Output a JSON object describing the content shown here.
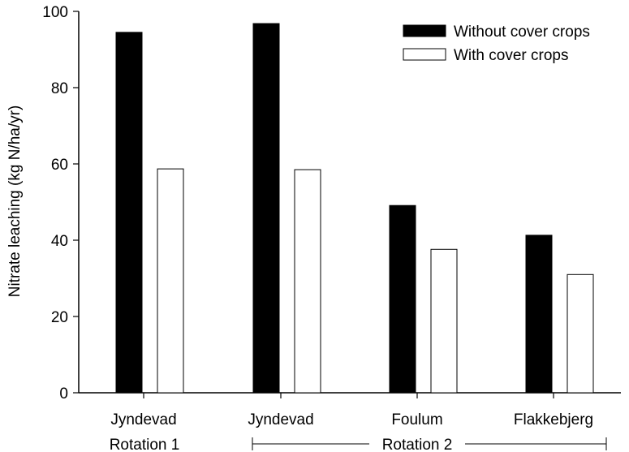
{
  "chart_data": {
    "type": "bar",
    "categories": [
      "Jyndevad",
      "Jyndevad",
      "Foulum",
      "Flakkebjerg"
    ],
    "groups": [
      {
        "label": "Rotation 1",
        "categories": [
          0
        ]
      },
      {
        "label": "Rotation 2",
        "categories": [
          1,
          2,
          3
        ]
      }
    ],
    "series": [
      {
        "name": "Without cover crops",
        "values": [
          94.5,
          96.8,
          49.1,
          41.3
        ],
        "color": "#000000"
      },
      {
        "name": "With cover crops",
        "values": [
          58.7,
          58.5,
          37.6,
          31.0
        ],
        "color": "#ffffff"
      }
    ],
    "title": "",
    "xlabel": "",
    "ylabel": "Nitrate leaching (kg N/ha/yr)",
    "ylim": [
      0,
      100
    ],
    "yticks": [
      0,
      20,
      40,
      60,
      80,
      100
    ],
    "grid": false,
    "legend_position": "top-right"
  }
}
